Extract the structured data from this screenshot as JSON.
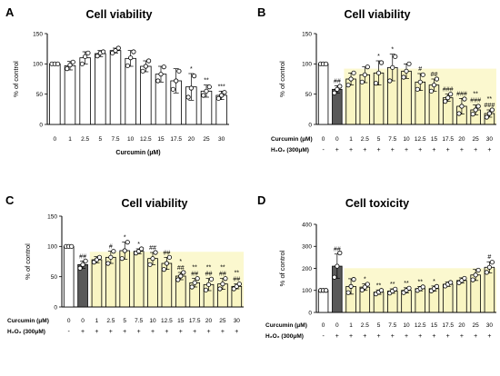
{
  "figure": {
    "background": "#ffffff"
  },
  "style": {
    "highlight_color": "#f7f2a8",
    "dark_bar_color": "#595959",
    "axis_color": "#000000"
  },
  "chart_data": [
    {
      "panel": "A",
      "type": "bar",
      "title": "Cell viability",
      "ylabel": "% of control",
      "xlabel": "Curcumin (µM)",
      "ylim": [
        0,
        150
      ],
      "yticks": [
        0,
        50,
        100,
        150
      ],
      "categories": [
        "0",
        "1",
        "2.5",
        "5",
        "7.5",
        "10",
        "12.5",
        "15",
        "17.5",
        "20",
        "25",
        "30"
      ],
      "values": [
        100,
        97,
        110,
        117,
        122,
        109,
        96,
        83,
        72,
        62,
        55,
        48
      ],
      "errors": [
        1,
        7,
        10,
        5,
        4,
        13,
        9,
        13,
        20,
        22,
        10,
        7
      ],
      "points": [
        [
          100,
          100,
          100
        ],
        [
          92,
          98,
          103
        ],
        [
          100,
          112,
          118
        ],
        [
          113,
          118,
          120
        ],
        [
          118,
          122,
          126
        ],
        [
          97,
          110,
          120
        ],
        [
          88,
          96,
          105
        ],
        [
          72,
          83,
          95
        ],
        [
          58,
          72,
          88
        ],
        [
          45,
          60,
          80
        ],
        [
          48,
          55,
          62
        ],
        [
          43,
          48,
          53
        ]
      ],
      "significance": [
        "",
        "",
        "",
        "",
        "",
        "",
        "",
        "",
        "",
        "*",
        "**",
        "***"
      ],
      "bar_fill": [
        "white",
        "white",
        "white",
        "white",
        "white",
        "white",
        "white",
        "white",
        "white",
        "white",
        "white",
        "white"
      ],
      "h2o2_row": null
    },
    {
      "panel": "B",
      "type": "bar",
      "title": "Cell viability",
      "ylabel": "% of control",
      "row_label": "Curcumin (µM)",
      "ylim": [
        0,
        150
      ],
      "yticks": [
        0,
        50,
        100,
        150
      ],
      "categories": [
        "0",
        "0",
        "1",
        "2.5",
        "5",
        "7.5",
        "10",
        "12.5",
        "15",
        "17.5",
        "20",
        "25",
        "30"
      ],
      "values": [
        100,
        58,
        75,
        82,
        85,
        94,
        88,
        70,
        65,
        44,
        30,
        24,
        18
      ],
      "errors": [
        1,
        6,
        10,
        13,
        20,
        22,
        12,
        14,
        10,
        6,
        13,
        8,
        6
      ],
      "points": [
        [
          100,
          100,
          100
        ],
        [
          52,
          58,
          63
        ],
        [
          65,
          75,
          85
        ],
        [
          70,
          82,
          95
        ],
        [
          68,
          85,
          102
        ],
        [
          72,
          94,
          112
        ],
        [
          78,
          88,
          100
        ],
        [
          58,
          70,
          82
        ],
        [
          55,
          65,
          75
        ],
        [
          38,
          44,
          50
        ],
        [
          18,
          30,
          42
        ],
        [
          17,
          24,
          30
        ],
        [
          12,
          18,
          24
        ]
      ],
      "significance": [
        "",
        "##",
        "",
        "",
        "*",
        "*",
        "",
        "#",
        "##",
        "###",
        "###",
        "**\n###",
        "**\n###"
      ],
      "bar_fill": [
        "white",
        "dark",
        "yellow",
        "yellow",
        "yellow",
        "yellow",
        "yellow",
        "yellow",
        "yellow",
        "yellow",
        "yellow",
        "yellow",
        "yellow"
      ],
      "h2o2_row": {
        "label": "H₂O₂ (300μM)",
        "marks": [
          "-",
          "+",
          "+",
          "+",
          "+",
          "+",
          "+",
          "+",
          "+",
          "+",
          "+",
          "+",
          "+"
        ]
      }
    },
    {
      "panel": "C",
      "type": "bar",
      "title": "Cell viability",
      "ylabel": "% of control",
      "row_label": "Curcumin (μM)",
      "ylim": [
        0,
        150
      ],
      "yticks": [
        0,
        50,
        100,
        150
      ],
      "categories": [
        "0",
        "0",
        "1",
        "2.5",
        "5",
        "7.5",
        "10",
        "12.5",
        "15",
        "17.5",
        "20",
        "25",
        "30"
      ],
      "values": [
        100,
        70,
        78,
        82,
        93,
        92,
        80,
        72,
        51,
        40,
        37,
        38,
        34
      ],
      "errors": [
        1,
        6,
        5,
        10,
        14,
        4,
        10,
        10,
        6,
        7,
        10,
        9,
        4
      ],
      "points": [
        [
          100,
          100,
          100
        ],
        [
          64,
          70,
          76
        ],
        [
          74,
          78,
          82
        ],
        [
          72,
          82,
          92
        ],
        [
          80,
          93,
          107
        ],
        [
          89,
          92,
          96
        ],
        [
          70,
          80,
          90
        ],
        [
          62,
          72,
          82
        ],
        [
          45,
          51,
          57
        ],
        [
          33,
          40,
          47
        ],
        [
          28,
          37,
          46
        ],
        [
          30,
          38,
          47
        ],
        [
          30,
          34,
          38
        ]
      ],
      "significance": [
        "",
        "##",
        "",
        "#",
        "*",
        "*",
        "##",
        "##",
        "*\n##",
        "**\n##",
        "**\n##",
        "**\n##",
        "**\n##"
      ],
      "bar_fill": [
        "white",
        "dark",
        "yellow",
        "yellow",
        "yellow",
        "yellow",
        "yellow",
        "yellow",
        "yellow",
        "yellow",
        "yellow",
        "yellow",
        "yellow"
      ],
      "h2o2_row": {
        "label": "H₂O₂ (300μM)",
        "marks": [
          "-",
          "+",
          "+",
          "+",
          "+",
          "+",
          "+",
          "+",
          "+",
          "+",
          "+",
          "+",
          "+"
        ]
      }
    },
    {
      "panel": "D",
      "type": "bar",
      "title": "Cell toxicity",
      "ylabel": "% of control",
      "row_label": "Curcumin (μM)",
      "ylim": [
        0,
        400
      ],
      "yticks": [
        0,
        100,
        200,
        300,
        400
      ],
      "categories": [
        "0",
        "0",
        "1",
        "2.5",
        "5",
        "7.5",
        "10",
        "12.5",
        "15",
        "17.5",
        "20",
        "25",
        "30"
      ],
      "values": [
        100,
        210,
        118,
        115,
        92,
        97,
        100,
        108,
        108,
        128,
        145,
        170,
        205
      ],
      "errors": [
        1,
        55,
        35,
        15,
        10,
        10,
        12,
        10,
        12,
        10,
        12,
        25,
        25
      ],
      "points": [
        [
          100,
          100,
          100
        ],
        [
          160,
          210,
          270
        ],
        [
          90,
          118,
          150
        ],
        [
          102,
          115,
          128
        ],
        [
          84,
          92,
          100
        ],
        [
          88,
          97,
          106
        ],
        [
          90,
          100,
          110
        ],
        [
          100,
          108,
          116
        ],
        [
          98,
          108,
          118
        ],
        [
          120,
          128,
          136
        ],
        [
          135,
          145,
          155
        ],
        [
          148,
          170,
          192
        ],
        [
          182,
          205,
          228
        ]
      ],
      "significance": [
        "",
        "##",
        "",
        "*",
        "**",
        "**",
        "**",
        "**",
        "*",
        "",
        "",
        "",
        "#"
      ],
      "bar_fill": [
        "white",
        "dark",
        "yellow",
        "yellow",
        "yellow",
        "yellow",
        "yellow",
        "yellow",
        "yellow",
        "yellow",
        "yellow",
        "yellow",
        "yellow"
      ],
      "h2o2_row": {
        "label": "H₂O₂ (300μM)",
        "marks": [
          "-",
          "+",
          "+",
          "+",
          "+",
          "+",
          "+",
          "+",
          "+",
          "+",
          "+",
          "+",
          "+"
        ]
      }
    }
  ]
}
